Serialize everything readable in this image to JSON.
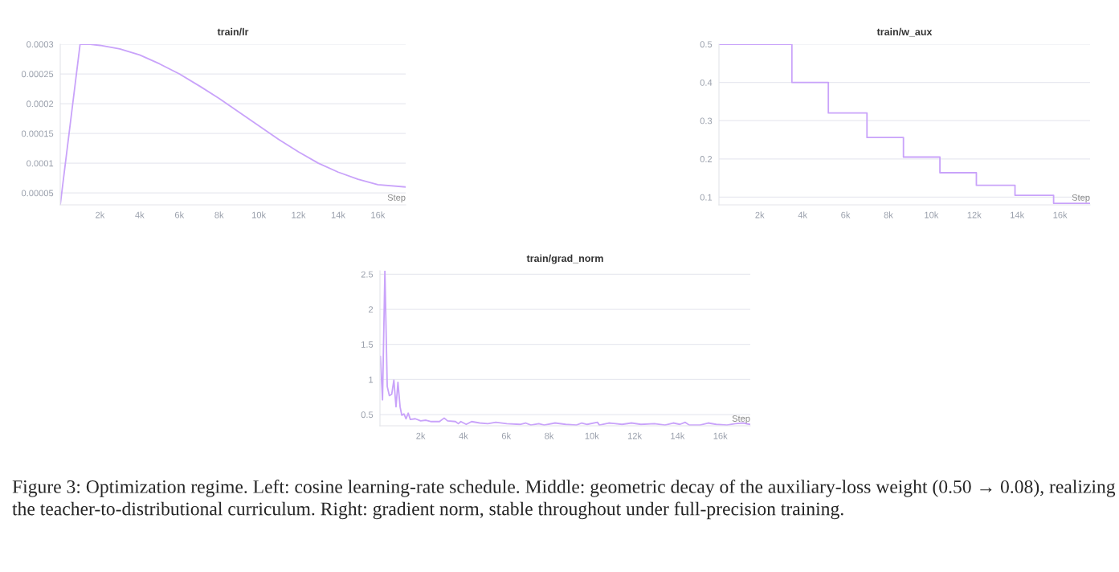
{
  "chart_data": [
    {
      "type": "line",
      "title": "train/lr",
      "xlabel": "Step",
      "color": "#c9a3fa",
      "grid": "y",
      "x": [
        0,
        1000,
        1500,
        2000,
        3000,
        4000,
        5000,
        6000,
        7000,
        8000,
        9000,
        10000,
        11000,
        12000,
        13000,
        14000,
        15000,
        16000,
        17400
      ],
      "values": [
        3e-05,
        0.0003,
        0.0003,
        0.000298,
        0.000292,
        0.000282,
        0.000267,
        0.00025,
        0.00023,
        0.000209,
        0.000186,
        0.000163,
        0.00014,
        0.000119,
        0.0001,
        8.5e-05,
        7.3e-05,
        6.4e-05,
        6e-05
      ],
      "xlim": [
        0,
        17400
      ],
      "ylim": [
        3e-05,
        0.0003
      ],
      "xticks": [
        {
          "value": 2000,
          "label": "2k"
        },
        {
          "value": 4000,
          "label": "4k"
        },
        {
          "value": 6000,
          "label": "6k"
        },
        {
          "value": 8000,
          "label": "8k"
        },
        {
          "value": 10000,
          "label": "10k"
        },
        {
          "value": 12000,
          "label": "12k"
        },
        {
          "value": 14000,
          "label": "14k"
        },
        {
          "value": 16000,
          "label": "16k"
        }
      ],
      "yticks": [
        {
          "value": 5e-05,
          "label": "0.00005"
        },
        {
          "value": 0.0001,
          "label": "0.0001"
        },
        {
          "value": 0.00015,
          "label": "0.00015"
        },
        {
          "value": 0.0002,
          "label": "0.0002"
        },
        {
          "value": 0.00025,
          "label": "0.00025"
        },
        {
          "value": 0.0003,
          "label": "0.0003"
        }
      ]
    },
    {
      "type": "step",
      "title": "train/w_aux",
      "xlabel": "Step",
      "color": "#c9a3fa",
      "grid": "y",
      "x": [
        100,
        3500,
        5200,
        7000,
        8700,
        10400,
        12100,
        13900,
        15700,
        17400
      ],
      "values": [
        0.5,
        0.4,
        0.32,
        0.256,
        0.205,
        0.164,
        0.131,
        0.105,
        0.084,
        0.084
      ],
      "xlim": [
        100,
        17400
      ],
      "ylim": [
        0.08,
        0.5
      ],
      "xticks": [
        {
          "value": 2000,
          "label": "2k"
        },
        {
          "value": 4000,
          "label": "4k"
        },
        {
          "value": 6000,
          "label": "6k"
        },
        {
          "value": 8000,
          "label": "8k"
        },
        {
          "value": 10000,
          "label": "10k"
        },
        {
          "value": 12000,
          "label": "12k"
        },
        {
          "value": 14000,
          "label": "14k"
        },
        {
          "value": 16000,
          "label": "16k"
        }
      ],
      "yticks": [
        0.1,
        0.2,
        0.3,
        0.4,
        0.5
      ]
    },
    {
      "type": "line",
      "title": "train/grad_norm",
      "xlabel": "Step",
      "color": "#c9a3fa",
      "grid": "y",
      "x": [
        120,
        220,
        330,
        440,
        540,
        650,
        750,
        850,
        940,
        1040,
        1120,
        1220,
        1320,
        1420,
        1520,
        1750,
        2000,
        2250,
        2500,
        2880,
        3100,
        3260,
        3630,
        3760,
        3880,
        4130,
        4380,
        4760,
        5140,
        5510,
        6020,
        6640,
        6900,
        7150,
        7520,
        7770,
        8280,
        8780,
        9280,
        9530,
        9780,
        10260,
        10350,
        10790,
        11410,
        11850,
        12290,
        12920,
        13420,
        13800,
        14110,
        14360,
        14550,
        15050,
        15430,
        15810,
        16310,
        16690,
        17070,
        17380
      ],
      "values": [
        1.33,
        0.71,
        2.55,
        0.9,
        0.77,
        0.79,
        0.99,
        0.61,
        0.96,
        0.61,
        0.49,
        0.51,
        0.44,
        0.52,
        0.43,
        0.44,
        0.41,
        0.42,
        0.4,
        0.4,
        0.45,
        0.41,
        0.4,
        0.37,
        0.4,
        0.36,
        0.4,
        0.38,
        0.37,
        0.39,
        0.37,
        0.36,
        0.38,
        0.35,
        0.37,
        0.35,
        0.38,
        0.36,
        0.35,
        0.38,
        0.36,
        0.39,
        0.35,
        0.38,
        0.36,
        0.38,
        0.36,
        0.37,
        0.35,
        0.38,
        0.36,
        0.39,
        0.35,
        0.35,
        0.38,
        0.36,
        0.35,
        0.37,
        0.38,
        0.36
      ],
      "xlim": [
        100,
        17400
      ],
      "ylim": [
        0.34,
        2.55
      ],
      "xticks": [
        {
          "value": 2000,
          "label": "2k"
        },
        {
          "value": 4000,
          "label": "4k"
        },
        {
          "value": 6000,
          "label": "6k"
        },
        {
          "value": 8000,
          "label": "8k"
        },
        {
          "value": 10000,
          "label": "10k"
        },
        {
          "value": 12000,
          "label": "12k"
        },
        {
          "value": 14000,
          "label": "14k"
        },
        {
          "value": 16000,
          "label": "16k"
        }
      ],
      "yticks": [
        0.5,
        1,
        1.5,
        2,
        2.5
      ],
      "annotations": [
        "Figure 3: Optimization regime. Left: cosine learning-rate schedule. Middle: geometric decay of the auxiliary-loss weight (0.50 → 0.08), realizing the teacher-to-distributional curriculum. Right: gradient norm, stable throughout under full-precision training."
      ]
    }
  ]
}
